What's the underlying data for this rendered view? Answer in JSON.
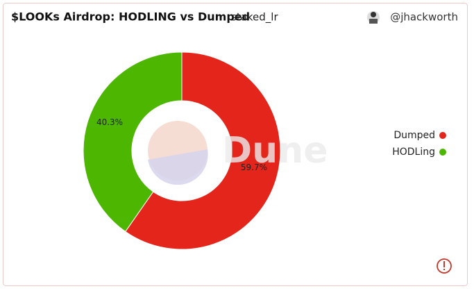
{
  "chart_data": {
    "type": "pie",
    "title": "$LOOKs Airdrop: HODLING vs Dumped",
    "subtitle": "staked_lr",
    "author": "@jhackworth",
    "watermark": "Dune",
    "categories": [
      "Dumped",
      "HODLing"
    ],
    "values": [
      59.7,
      40.3
    ],
    "value_labels": [
      "59.7%",
      "40.3%"
    ],
    "colors": [
      "#e3251b",
      "#4db600"
    ],
    "legend": "right"
  }
}
